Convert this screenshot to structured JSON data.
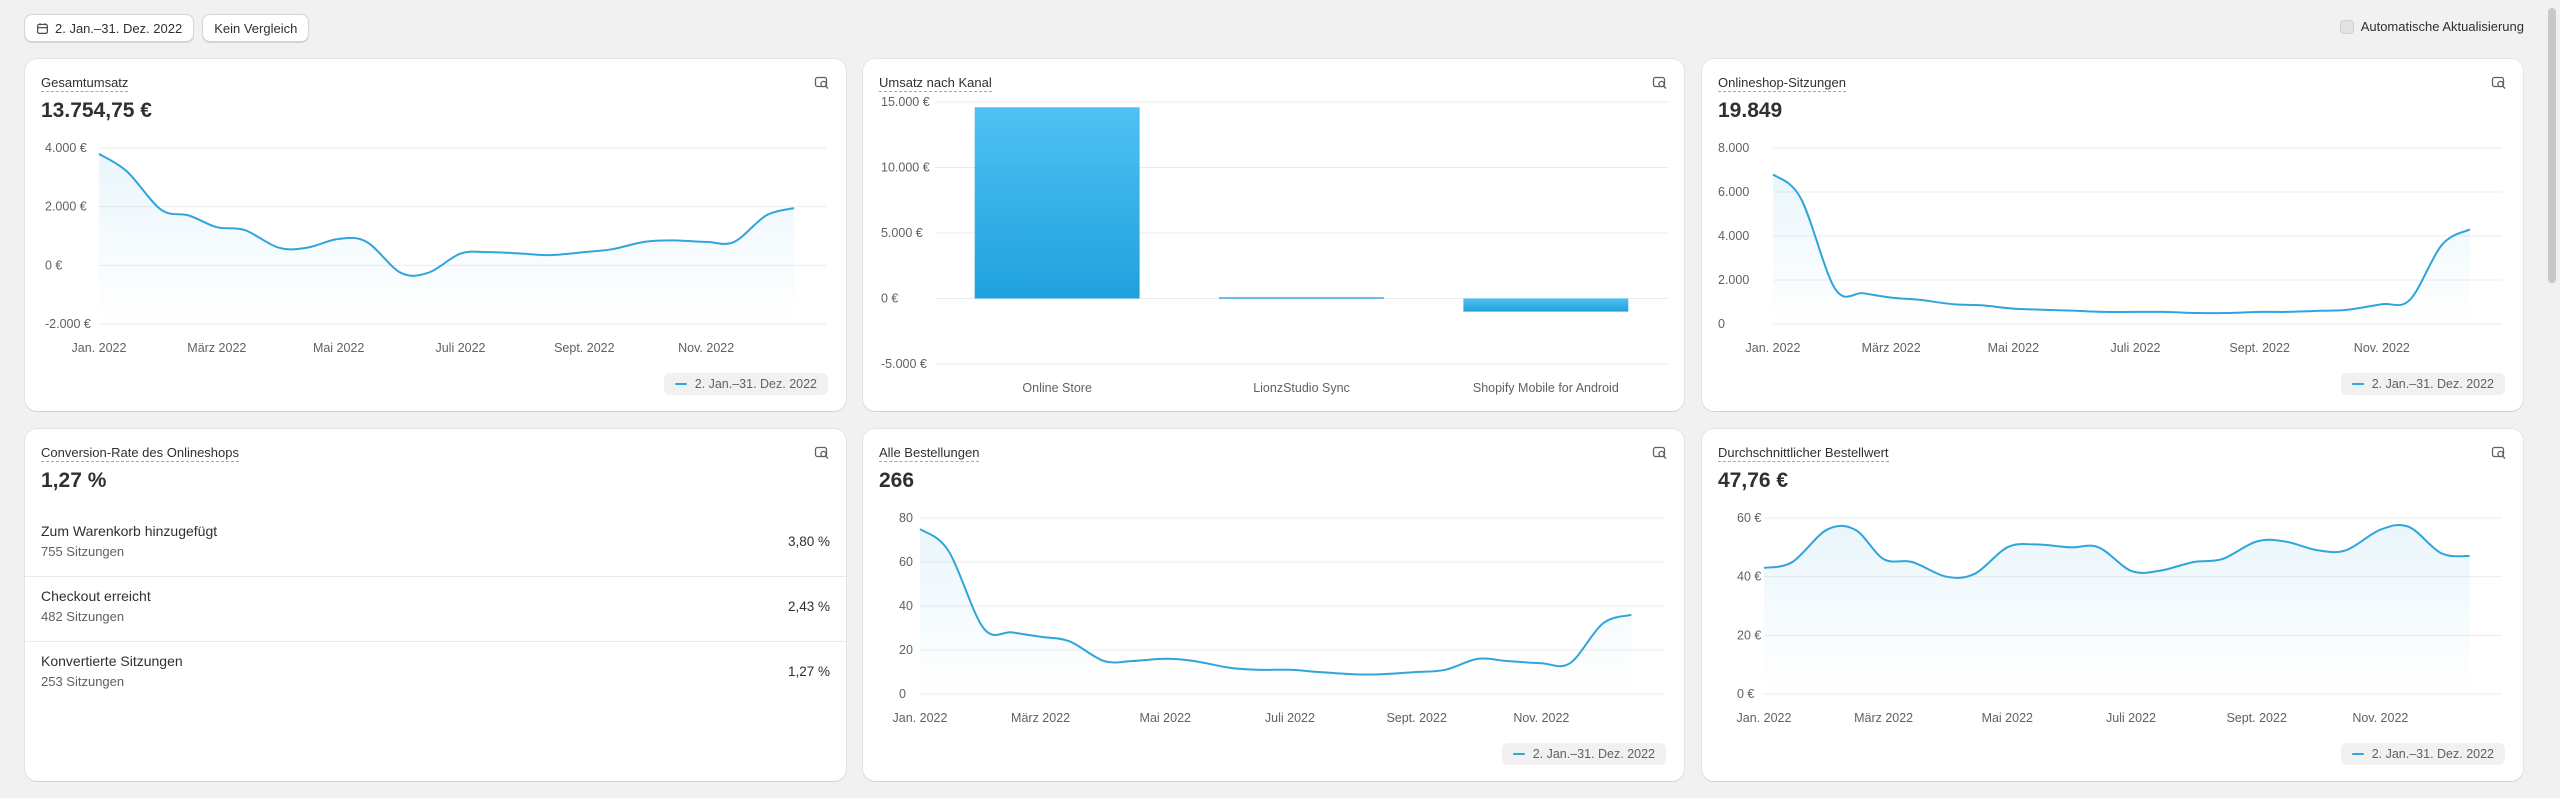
{
  "toolbar": {
    "date_range": "2. Jan.–31. Dez. 2022",
    "compare_label": "Kein Vergleich",
    "auto_update_label": "Automatische Aktualisierung"
  },
  "legend_label": "2. Jan.–31. Dez. 2022",
  "colors": {
    "accent": "#30a5dc",
    "bar_top": "#4fc1f2",
    "bar_bottom": "#1fa1de",
    "grid": "#ebebeb",
    "background": "#f1f1f1"
  },
  "cards": {
    "total_sales": {
      "title": "Gesamtumsatz",
      "value": "13.754,75 €"
    },
    "sales_by_channel": {
      "title": "Umsatz nach Kanal"
    },
    "sessions": {
      "title": "Onlineshop-Sitzungen",
      "value": "19.849"
    },
    "conversion": {
      "title": "Conversion-Rate des Onlineshops",
      "value": "1,27 %",
      "rows": [
        {
          "label": "Zum Warenkorb hinzugefügt",
          "sub": "755 Sitzungen",
          "pct": "3,80 %"
        },
        {
          "label": "Checkout erreicht",
          "sub": "482 Sitzungen",
          "pct": "2,43 %"
        },
        {
          "label": "Konvertierte Sitzungen",
          "sub": "253 Sitzungen",
          "pct": "1,27 %"
        }
      ]
    },
    "orders": {
      "title": "Alle Bestellungen",
      "value": "266"
    },
    "aov": {
      "title": "Durchschnittlicher Bestellwert",
      "value": "47,76 €"
    }
  },
  "chart_data": [
    {
      "id": "total_sales",
      "type": "line",
      "x_ticks": [
        "Jan. 2022",
        "März 2022",
        "Mai 2022",
        "Juli 2022",
        "Sept. 2022",
        "Nov. 2022"
      ],
      "y_ticks": [
        "4.000 €",
        "2.000 €",
        "0 €",
        "-2.000 €"
      ],
      "ylim": [
        -2000,
        4000
      ],
      "x": [
        "2022-01-01",
        "2022-01-15",
        "2022-02-01",
        "2022-02-15",
        "2022-03-01",
        "2022-03-15",
        "2022-04-01",
        "2022-04-15",
        "2022-05-01",
        "2022-05-15",
        "2022-06-01",
        "2022-06-15",
        "2022-07-01",
        "2022-07-15",
        "2022-08-01",
        "2022-08-15",
        "2022-09-01",
        "2022-09-15",
        "2022-10-01",
        "2022-10-15",
        "2022-11-01",
        "2022-11-15",
        "2022-12-01",
        "2022-12-15"
      ],
      "y": [
        3800,
        3200,
        1900,
        1700,
        1300,
        1200,
        600,
        600,
        900,
        800,
        -250,
        -250,
        400,
        450,
        400,
        350,
        450,
        550,
        800,
        850,
        800,
        800,
        1700,
        1950
      ],
      "series": [
        {
          "name": "2. Jan.–31. Dez. 2022"
        }
      ]
    },
    {
      "id": "sales_by_channel",
      "type": "bar",
      "categories": [
        "Online Store",
        "LionzStudio Sync",
        "Shopify Mobile for Android"
      ],
      "values": [
        14600,
        100,
        -1000
      ],
      "y_ticks": [
        "15.000 €",
        "10.000 €",
        "5.000 €",
        "0 €",
        "-5.000 €"
      ],
      "ylim": [
        -5000,
        15000
      ]
    },
    {
      "id": "sessions",
      "type": "line",
      "x_ticks": [
        "Jan. 2022",
        "März 2022",
        "Mai 2022",
        "Juli 2022",
        "Sept. 2022",
        "Nov. 2022"
      ],
      "y_ticks": [
        "8.000",
        "6.000",
        "4.000",
        "2.000",
        "0"
      ],
      "ylim": [
        0,
        8000
      ],
      "x": [
        "2022-01-01",
        "2022-01-15",
        "2022-02-01",
        "2022-02-15",
        "2022-03-01",
        "2022-03-15",
        "2022-04-01",
        "2022-04-15",
        "2022-05-01",
        "2022-05-15",
        "2022-06-01",
        "2022-06-15",
        "2022-07-01",
        "2022-07-15",
        "2022-08-01",
        "2022-08-15",
        "2022-09-01",
        "2022-09-15",
        "2022-10-01",
        "2022-10-15",
        "2022-11-01",
        "2022-11-15",
        "2022-12-01",
        "2022-12-15"
      ],
      "y": [
        6800,
        5700,
        1600,
        1400,
        1200,
        1100,
        900,
        850,
        700,
        650,
        600,
        550,
        550,
        550,
        500,
        500,
        550,
        550,
        600,
        650,
        900,
        1100,
        3600,
        4300
      ],
      "series": [
        {
          "name": "2. Jan.–31. Dez. 2022"
        }
      ]
    },
    {
      "id": "orders",
      "type": "line",
      "x_ticks": [
        "Jan. 2022",
        "März 2022",
        "Mai 2022",
        "Juli 2022",
        "Sept. 2022",
        "Nov. 2022"
      ],
      "y_ticks": [
        "80",
        "60",
        "40",
        "20",
        "0"
      ],
      "ylim": [
        0,
        80
      ],
      "x": [
        "2022-01-01",
        "2022-01-15",
        "2022-02-01",
        "2022-02-15",
        "2022-03-01",
        "2022-03-15",
        "2022-04-01",
        "2022-04-15",
        "2022-05-01",
        "2022-05-15",
        "2022-06-01",
        "2022-06-15",
        "2022-07-01",
        "2022-07-15",
        "2022-08-01",
        "2022-08-15",
        "2022-09-01",
        "2022-09-15",
        "2022-10-01",
        "2022-10-15",
        "2022-11-01",
        "2022-11-15",
        "2022-12-01",
        "2022-12-15"
      ],
      "y": [
        75,
        65,
        30,
        28,
        26,
        24,
        15,
        15,
        16,
        15,
        12,
        11,
        11,
        10,
        9,
        9,
        10,
        11,
        16,
        15,
        14,
        14,
        32,
        36
      ],
      "series": [
        {
          "name": "2. Jan.–31. Dez. 2022"
        }
      ]
    },
    {
      "id": "aov",
      "type": "line",
      "x_ticks": [
        "Jan. 2022",
        "März 2022",
        "Mai 2022",
        "Juli 2022",
        "Sept. 2022",
        "Nov. 2022"
      ],
      "y_ticks": [
        "60 €",
        "40 €",
        "20 €",
        "0 €"
      ],
      "ylim": [
        0,
        60
      ],
      "x": [
        "2022-01-01",
        "2022-01-15",
        "2022-02-01",
        "2022-02-15",
        "2022-03-01",
        "2022-03-15",
        "2022-04-01",
        "2022-04-15",
        "2022-05-01",
        "2022-05-15",
        "2022-06-01",
        "2022-06-15",
        "2022-07-01",
        "2022-07-15",
        "2022-08-01",
        "2022-08-15",
        "2022-09-01",
        "2022-09-15",
        "2022-10-01",
        "2022-10-15",
        "2022-11-01",
        "2022-11-15",
        "2022-12-01",
        "2022-12-15"
      ],
      "y": [
        43,
        45,
        56,
        56,
        46,
        45,
        40,
        41,
        50,
        51,
        50,
        50,
        42,
        42,
        45,
        46,
        52,
        52,
        49,
        49,
        56,
        57,
        48,
        47
      ],
      "series": [
        {
          "name": "2. Jan.–31. Dez. 2022"
        }
      ]
    }
  ]
}
